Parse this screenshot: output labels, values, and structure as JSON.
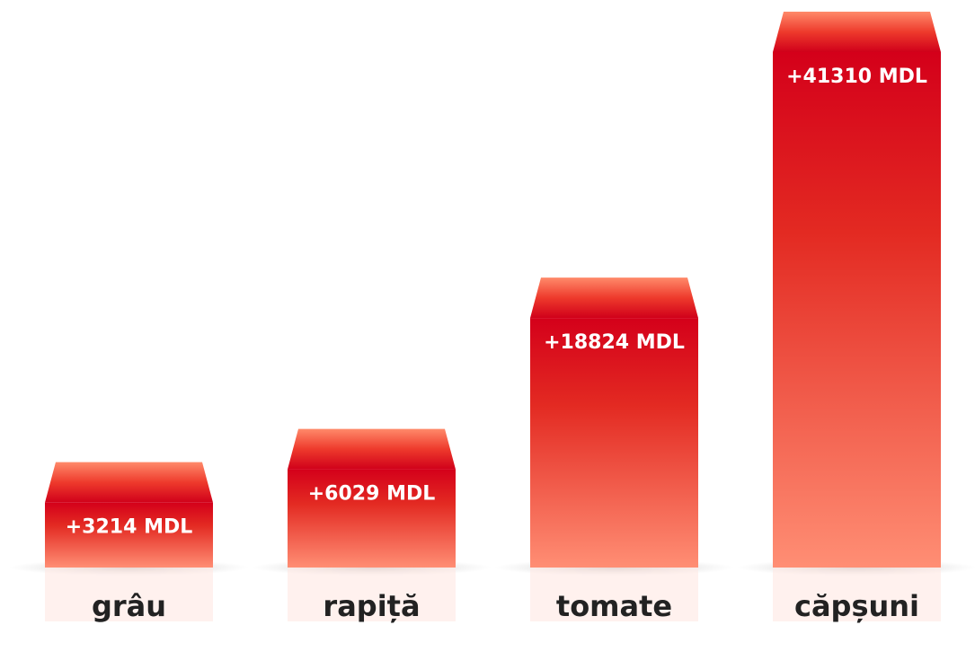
{
  "chart_data": {
    "type": "bar",
    "categories": [
      "grâu",
      "rapiță",
      "tomate",
      "căpșuni"
    ],
    "values": [
      3214,
      6029,
      18824,
      41310
    ],
    "value_labels": [
      "+3214 MDL",
      "+6029 MDL",
      "+18824 MDL",
      "+41310 MDL"
    ],
    "color": "#e0101c"
  }
}
